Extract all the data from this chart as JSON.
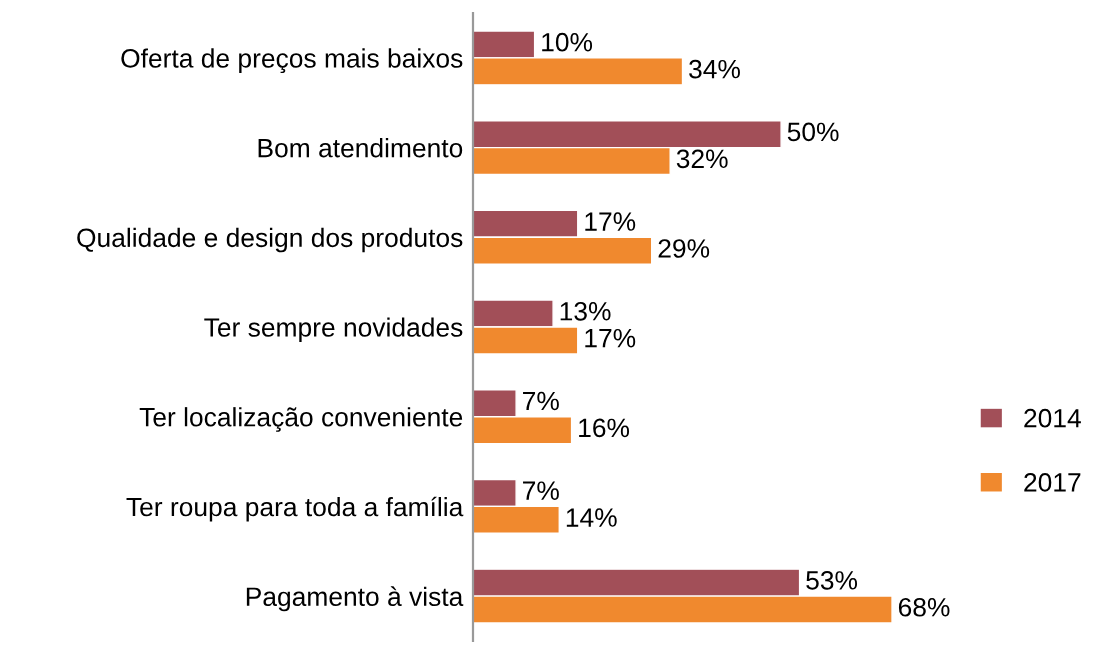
{
  "chart_data": {
    "type": "bar",
    "orientation": "horizontal",
    "categories": [
      "Oferta de preços mais baixos",
      "Bom atendimento",
      "Qualidade e design dos produtos",
      "Ter sempre novidades",
      "Ter localização conveniente",
      "Ter roupa para toda a família",
      "Pagamento à vista"
    ],
    "series": [
      {
        "name": "2014",
        "color": "#a24f58",
        "values": [
          10,
          50,
          17,
          13,
          7,
          7,
          53
        ],
        "value_labels": [
          "10%",
          "50%",
          "17%",
          "13%",
          "7%",
          "7%",
          "53%"
        ]
      },
      {
        "name": "2017",
        "color": "#f0892e",
        "values": [
          34,
          32,
          29,
          17,
          16,
          14,
          68
        ],
        "value_labels": [
          "34%",
          "32%",
          "29%",
          "17%",
          "16%",
          "14%",
          "68%"
        ]
      }
    ],
    "legend": "right"
  }
}
